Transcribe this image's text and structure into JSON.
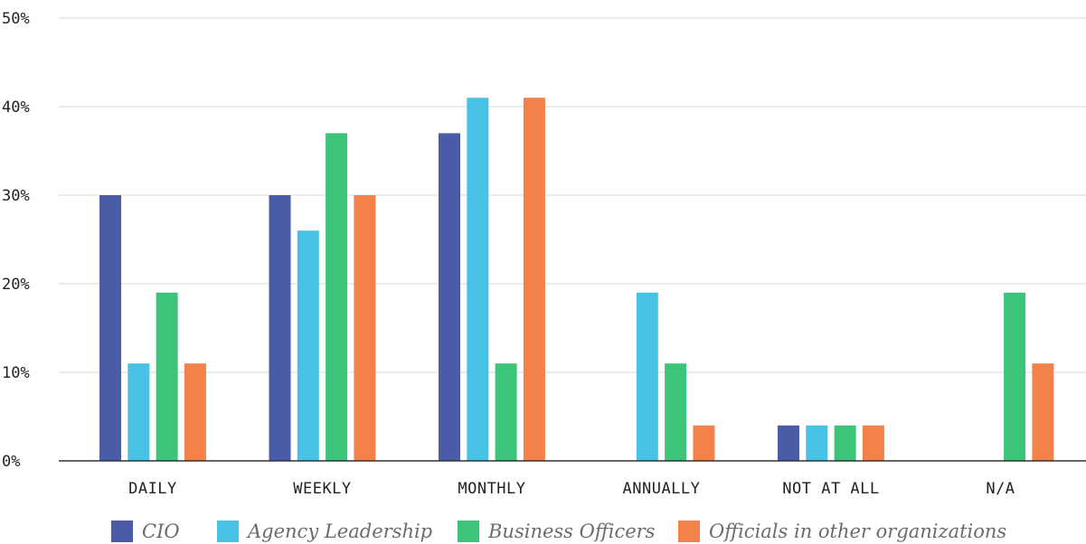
{
  "chart_data": {
    "type": "bar",
    "categories": [
      "DAILY",
      "WEEKLY",
      "MONTHLY",
      "ANNUALLY",
      "NOT AT ALL",
      "N/A"
    ],
    "series": [
      {
        "name": "CIO",
        "color": "#4a5ca8",
        "values": [
          30,
          30,
          37,
          0,
          4,
          0
        ]
      },
      {
        "name": "Agency Leadership",
        "color": "#48c2e4",
        "values": [
          11,
          26,
          41,
          19,
          4,
          0
        ]
      },
      {
        "name": "Business Officers",
        "color": "#3cc57a",
        "values": [
          19,
          37,
          11,
          11,
          4,
          19
        ]
      },
      {
        "name": "Officials in other organizations",
        "color": "#f28249",
        "values": [
          11,
          30,
          41,
          4,
          4,
          11
        ]
      }
    ],
    "yticks": [
      "0%",
      "10%",
      "20%",
      "30%",
      "40%",
      "50%"
    ],
    "ylim": [
      0,
      50
    ],
    "grid": true,
    "legend_position": "bottom"
  }
}
